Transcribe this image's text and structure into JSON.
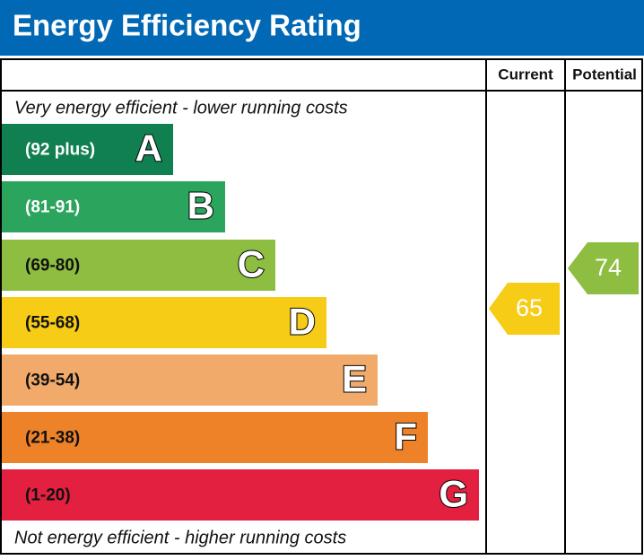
{
  "header": {
    "title": "Energy Efficiency Rating"
  },
  "columns": {
    "current": "Current",
    "potential": "Potential"
  },
  "top_note": "Very energy efficient - lower running costs",
  "bottom_note": "Not energy efficient - higher running costs",
  "bands": [
    {
      "range": "(92 plus)",
      "letter": "A",
      "color": "#108050"
    },
    {
      "range": "(81-91)",
      "letter": "B",
      "color": "#2ba55d"
    },
    {
      "range": "(69-80)",
      "letter": "C",
      "color": "#8dbd41"
    },
    {
      "range": "(55-68)",
      "letter": "D",
      "color": "#f6cc16"
    },
    {
      "range": "(39-54)",
      "letter": "E",
      "color": "#f2aa6b"
    },
    {
      "range": "(21-38)",
      "letter": "F",
      "color": "#ee8229"
    },
    {
      "range": "(1-20)",
      "letter": "G",
      "color": "#e3203f"
    }
  ],
  "current": {
    "value": 65,
    "color": "#f6cc16"
  },
  "potential": {
    "value": 74,
    "color": "#8dbd41"
  }
}
